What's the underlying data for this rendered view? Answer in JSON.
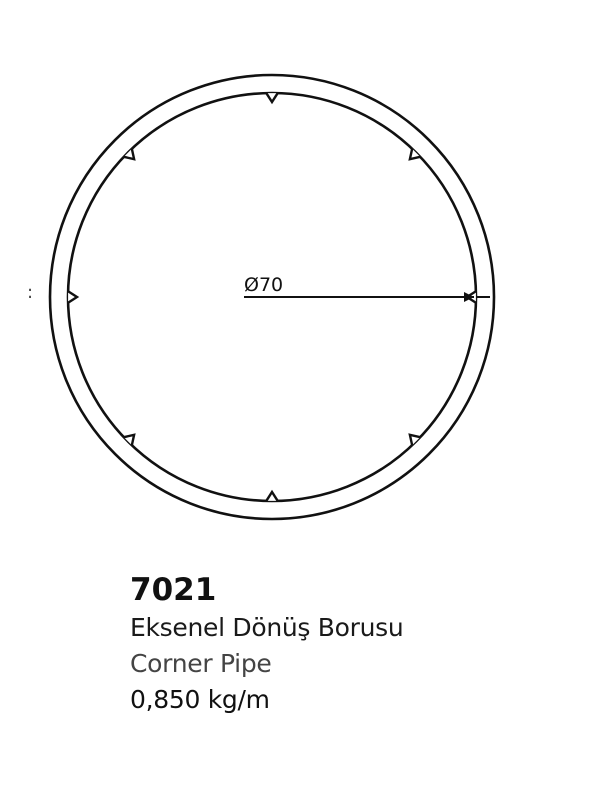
{
  "diagram": {
    "diameter_label": "Ø70",
    "stray_mark": ":",
    "notch_count": 8
  },
  "product": {
    "code": "7021",
    "name_tr": "Eksenel Dönüş Borusu",
    "name_en": "Corner Pipe",
    "weight": "0,850 kg/m"
  },
  "colors": {
    "stroke": "#111111",
    "background": "#ffffff"
  }
}
